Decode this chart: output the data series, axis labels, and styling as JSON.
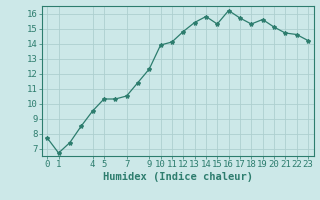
{
  "x": [
    0,
    1,
    2,
    3,
    4,
    5,
    6,
    7,
    8,
    9,
    10,
    11,
    12,
    13,
    14,
    15,
    16,
    17,
    18,
    19,
    20,
    21,
    22,
    23
  ],
  "y": [
    7.7,
    6.7,
    7.4,
    8.5,
    9.5,
    10.3,
    10.3,
    10.5,
    11.4,
    12.3,
    13.9,
    14.1,
    14.8,
    15.4,
    15.8,
    15.3,
    16.2,
    15.7,
    15.3,
    15.6,
    15.1,
    14.7,
    14.6,
    14.2
  ],
  "xlabel": "Humidex (Indice chaleur)",
  "xticks": [
    0,
    1,
    4,
    5,
    7,
    9,
    10,
    11,
    12,
    13,
    14,
    15,
    16,
    17,
    18,
    19,
    20,
    21,
    22,
    23
  ],
  "yticks": [
    7,
    8,
    9,
    10,
    11,
    12,
    13,
    14,
    15,
    16
  ],
  "ylim": [
    6.5,
    16.5
  ],
  "xlim": [
    -0.5,
    23.5
  ],
  "line_color": "#2d7d6e",
  "marker": "*",
  "marker_size": 3,
  "bg_color": "#cce8e8",
  "grid_color": "#aecfcf",
  "axis_color": "#2d7d6e",
  "xlabel_fontsize": 7.5,
  "tick_fontsize": 6.5
}
